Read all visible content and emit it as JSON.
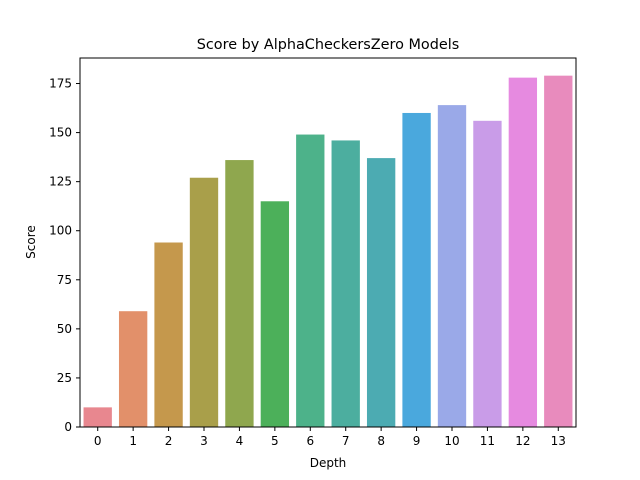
{
  "chart_data": {
    "type": "bar",
    "title": "Score by AlphaCheckersZero Models",
    "xlabel": "Depth",
    "ylabel": "Score",
    "categories": [
      "0",
      "1",
      "2",
      "3",
      "4",
      "5",
      "6",
      "7",
      "8",
      "9",
      "10",
      "11",
      "12",
      "13"
    ],
    "values": [
      10,
      59,
      94,
      127,
      136,
      115,
      149,
      146,
      137,
      160,
      164,
      156,
      178,
      179
    ],
    "ylim": [
      0,
      188
    ],
    "yticks": [
      0,
      25,
      50,
      75,
      100,
      125,
      150,
      175
    ],
    "grid": false,
    "colors": [
      "#e8878f",
      "#e2906a",
      "#c5984c",
      "#a99f4a",
      "#8fa74e",
      "#4cb05a",
      "#4db28a",
      "#4cae9f",
      "#4cabb2",
      "#4aa8dd",
      "#9aa9e8",
      "#c99ce8",
      "#e68ae0",
      "#e88bbd"
    ]
  }
}
